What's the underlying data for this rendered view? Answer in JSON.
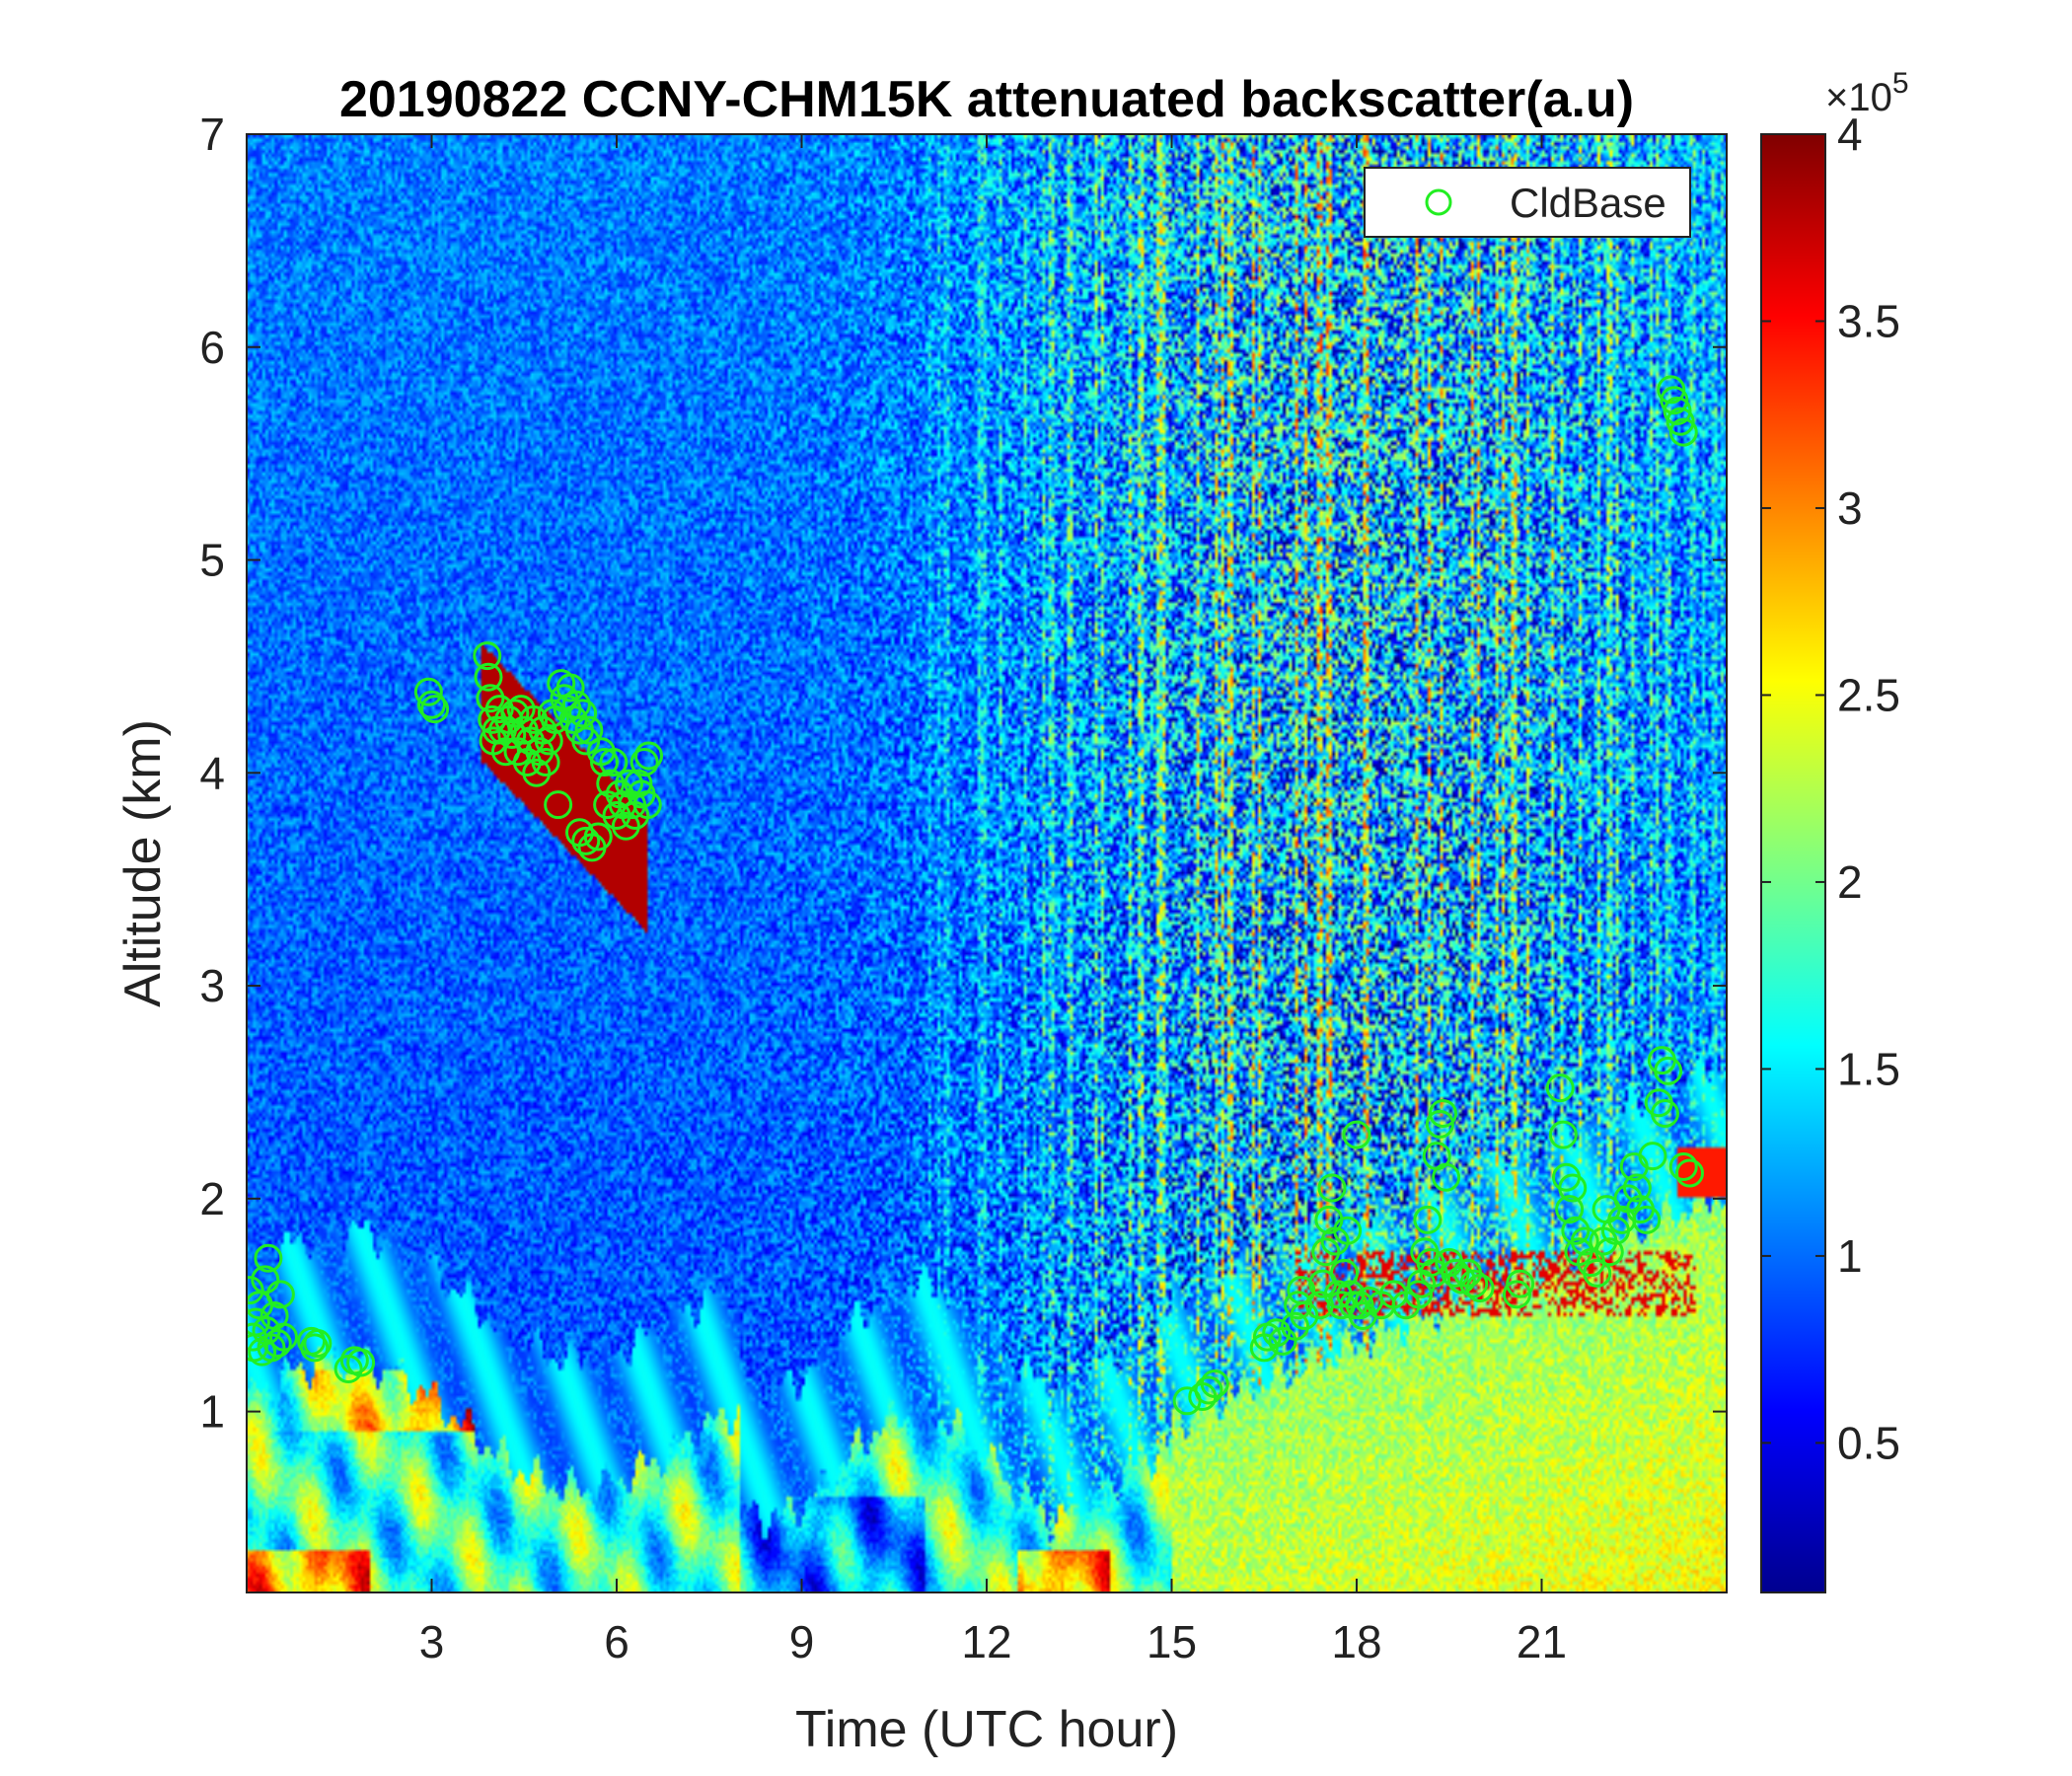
{
  "chart_data": {
    "type": "heatmap",
    "title": "20190822 CCNY-CHM15K attenuated backscatter(a.u)",
    "xlabel": "Time (UTC hour)",
    "ylabel": "Altitude (km)",
    "xlim": [
      0,
      24
    ],
    "ylim": [
      0.15,
      7
    ],
    "xticks": [
      3,
      6,
      9,
      12,
      15,
      18,
      21
    ],
    "yticks": [
      1,
      2,
      3,
      4,
      5,
      6,
      7
    ],
    "colormap": "jet",
    "colorbar": {
      "range": [
        0.1,
        4
      ],
      "ticks": [
        "0.5",
        "1",
        "1.5",
        "2",
        "2.5",
        "3",
        "3.5",
        "4"
      ],
      "tick_values": [
        0.5,
        1,
        1.5,
        2,
        2.5,
        3,
        3.5,
        4
      ],
      "multiplier_base": "×10",
      "multiplier_exp": "5"
    },
    "legend": {
      "position": "top-right",
      "entries": [
        {
          "name": "CldBase",
          "marker": "circle",
          "color": "#22ee22"
        }
      ]
    },
    "series": [
      {
        "name": "CldBase",
        "marker_color": "#22ee22",
        "points": [
          [
            0.05,
            1.57
          ],
          [
            0.1,
            1.35
          ],
          [
            0.12,
            1.3
          ],
          [
            0.15,
            1.42
          ],
          [
            0.2,
            1.5
          ],
          [
            0.25,
            1.28
          ],
          [
            0.3,
            1.62
          ],
          [
            0.32,
            1.38
          ],
          [
            0.35,
            1.72
          ],
          [
            0.4,
            1.3
          ],
          [
            0.45,
            1.45
          ],
          [
            0.5,
            1.32
          ],
          [
            0.55,
            1.55
          ],
          [
            0.6,
            1.35
          ],
          [
            1.05,
            1.33
          ],
          [
            1.1,
            1.3
          ],
          [
            1.15,
            1.32
          ],
          [
            1.65,
            1.2
          ],
          [
            1.75,
            1.24
          ],
          [
            1.85,
            1.23
          ],
          [
            2.95,
            4.38
          ],
          [
            3.0,
            4.32
          ],
          [
            3.05,
            4.3
          ],
          [
            3.9,
            4.55
          ],
          [
            3.92,
            4.45
          ],
          [
            3.95,
            4.35
          ],
          [
            3.98,
            4.25
          ],
          [
            4.0,
            4.15
          ],
          [
            4.05,
            4.2
          ],
          [
            4.1,
            4.3
          ],
          [
            4.15,
            4.2
          ],
          [
            4.2,
            4.1
          ],
          [
            4.25,
            4.25
          ],
          [
            4.3,
            4.18
          ],
          [
            4.35,
            4.28
          ],
          [
            4.4,
            4.1
          ],
          [
            4.45,
            4.3
          ],
          [
            4.5,
            4.2
          ],
          [
            4.55,
            4.05
          ],
          [
            4.6,
            4.15
          ],
          [
            4.65,
            4.25
          ],
          [
            4.7,
            4.0
          ],
          [
            4.75,
            4.1
          ],
          [
            4.8,
            4.2
          ],
          [
            4.85,
            4.05
          ],
          [
            4.9,
            4.15
          ],
          [
            4.95,
            4.28
          ],
          [
            5.0,
            4.25
          ],
          [
            5.05,
            3.85
          ],
          [
            5.1,
            4.42
          ],
          [
            5.15,
            4.35
          ],
          [
            5.2,
            4.3
          ],
          [
            5.25,
            4.4
          ],
          [
            5.3,
            4.25
          ],
          [
            5.35,
            4.32
          ],
          [
            5.4,
            4.2
          ],
          [
            5.45,
            4.28
          ],
          [
            5.5,
            4.15
          ],
          [
            5.55,
            4.2
          ],
          [
            5.4,
            3.72
          ],
          [
            5.5,
            3.68
          ],
          [
            5.6,
            3.65
          ],
          [
            5.7,
            3.7
          ],
          [
            5.75,
            4.1
          ],
          [
            5.8,
            4.05
          ],
          [
            5.85,
            3.85
          ],
          [
            5.9,
            3.95
          ],
          [
            5.95,
            4.05
          ],
          [
            6.0,
            3.8
          ],
          [
            6.05,
            3.9
          ],
          [
            6.1,
            3.85
          ],
          [
            6.15,
            3.75
          ],
          [
            6.2,
            3.95
          ],
          [
            6.25,
            3.85
          ],
          [
            6.3,
            3.8
          ],
          [
            6.35,
            3.95
          ],
          [
            6.4,
            3.9
          ],
          [
            6.45,
            4.05
          ],
          [
            6.5,
            3.85
          ],
          [
            6.52,
            4.08
          ],
          [
            15.25,
            1.05
          ],
          [
            15.5,
            1.07
          ],
          [
            15.6,
            1.1
          ],
          [
            15.7,
            1.13
          ],
          [
            16.5,
            1.3
          ],
          [
            16.55,
            1.35
          ],
          [
            16.7,
            1.37
          ],
          [
            16.8,
            1.33
          ],
          [
            17.0,
            1.4
          ],
          [
            17.05,
            1.5
          ],
          [
            17.1,
            1.57
          ],
          [
            17.15,
            1.45
          ],
          [
            17.4,
            1.5
          ],
          [
            17.45,
            1.6
          ],
          [
            17.5,
            1.75
          ],
          [
            17.55,
            1.9
          ],
          [
            17.6,
            2.05
          ],
          [
            17.65,
            1.8
          ],
          [
            17.7,
            1.55
          ],
          [
            17.75,
            1.5
          ],
          [
            17.8,
            1.65
          ],
          [
            17.85,
            1.85
          ],
          [
            17.9,
            1.55
          ],
          [
            17.95,
            1.5
          ],
          [
            18.0,
            2.3
          ],
          [
            18.05,
            1.5
          ],
          [
            18.1,
            1.45
          ],
          [
            18.2,
            1.52
          ],
          [
            18.4,
            1.5
          ],
          [
            18.6,
            1.55
          ],
          [
            18.8,
            1.5
          ],
          [
            19.0,
            1.55
          ],
          [
            19.05,
            1.6
          ],
          [
            19.1,
            1.75
          ],
          [
            19.15,
            1.9
          ],
          [
            19.2,
            1.7
          ],
          [
            19.25,
            1.65
          ],
          [
            19.3,
            2.2
          ],
          [
            19.35,
            2.35
          ],
          [
            19.4,
            2.4
          ],
          [
            19.45,
            2.1
          ],
          [
            19.5,
            1.7
          ],
          [
            19.6,
            1.65
          ],
          [
            19.7,
            1.62
          ],
          [
            19.8,
            1.65
          ],
          [
            19.9,
            1.6
          ],
          [
            20.0,
            1.58
          ],
          [
            20.6,
            1.55
          ],
          [
            20.65,
            1.6
          ],
          [
            21.3,
            2.52
          ],
          [
            21.35,
            2.3
          ],
          [
            21.4,
            2.1
          ],
          [
            21.45,
            1.95
          ],
          [
            21.5,
            2.05
          ],
          [
            21.55,
            1.85
          ],
          [
            21.6,
            1.75
          ],
          [
            21.7,
            1.8
          ],
          [
            21.8,
            1.7
          ],
          [
            21.9,
            1.65
          ],
          [
            22.0,
            1.8
          ],
          [
            22.05,
            1.95
          ],
          [
            22.1,
            1.75
          ],
          [
            22.2,
            1.85
          ],
          [
            22.3,
            1.9
          ],
          [
            22.4,
            2.0
          ],
          [
            22.5,
            2.15
          ],
          [
            22.55,
            2.05
          ],
          [
            22.6,
            1.95
          ],
          [
            22.7,
            1.9
          ],
          [
            22.8,
            2.2
          ],
          [
            22.9,
            2.45
          ],
          [
            22.95,
            2.65
          ],
          [
            23.0,
            2.4
          ],
          [
            23.05,
            2.6
          ],
          [
            23.3,
            2.15
          ],
          [
            23.4,
            2.12
          ],
          [
            23.1,
            5.8
          ],
          [
            23.15,
            5.75
          ],
          [
            23.2,
            5.7
          ],
          [
            23.25,
            5.65
          ],
          [
            23.3,
            5.6
          ]
        ]
      }
    ]
  }
}
